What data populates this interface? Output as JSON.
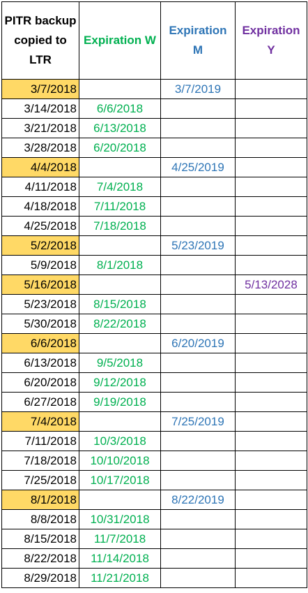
{
  "headers": {
    "backup": "PITR backup copied to LTR",
    "w": "Expiration W",
    "m": "Expiration M",
    "y": "Expiration Y"
  },
  "colors": {
    "w": "#00b050",
    "m": "#2e75b6",
    "y": "#7030a0",
    "highlight": "#ffd966"
  },
  "rows": [
    {
      "backup": "3/7/2018",
      "w": "",
      "m": "3/7/2019",
      "y": "",
      "highlight": true
    },
    {
      "backup": "3/14/2018",
      "w": "6/6/2018",
      "m": "",
      "y": "",
      "highlight": false
    },
    {
      "backup": "3/21/2018",
      "w": "6/13/2018",
      "m": "",
      "y": "",
      "highlight": false
    },
    {
      "backup": "3/28/2018",
      "w": "6/20/2018",
      "m": "",
      "y": "",
      "highlight": false
    },
    {
      "backup": "4/4/2018",
      "w": "",
      "m": "4/25/2019",
      "y": "",
      "highlight": true
    },
    {
      "backup": "4/11/2018",
      "w": "7/4/2018",
      "m": "",
      "y": "",
      "highlight": false
    },
    {
      "backup": "4/18/2018",
      "w": "7/11/2018",
      "m": "",
      "y": "",
      "highlight": false
    },
    {
      "backup": "4/25/2018",
      "w": "7/18/2018",
      "m": "",
      "y": "",
      "highlight": false
    },
    {
      "backup": "5/2/2018",
      "w": "",
      "m": "5/23/2019",
      "y": "",
      "highlight": true
    },
    {
      "backup": "5/9/2018",
      "w": "8/1/2018",
      "m": "",
      "y": "",
      "highlight": false
    },
    {
      "backup": "5/16/2018",
      "w": "",
      "m": "",
      "y": "5/13/2028",
      "highlight": true
    },
    {
      "backup": "5/23/2018",
      "w": "8/15/2018",
      "m": "",
      "y": "",
      "highlight": false
    },
    {
      "backup": "5/30/2018",
      "w": "8/22/2018",
      "m": "",
      "y": "",
      "highlight": false
    },
    {
      "backup": "6/6/2018",
      "w": "",
      "m": "6/20/2019",
      "y": "",
      "highlight": true
    },
    {
      "backup": "6/13/2018",
      "w": "9/5/2018",
      "m": "",
      "y": "",
      "highlight": false
    },
    {
      "backup": "6/20/2018",
      "w": "9/12/2018",
      "m": "",
      "y": "",
      "highlight": false
    },
    {
      "backup": "6/27/2018",
      "w": "9/19/2018",
      "m": "",
      "y": "",
      "highlight": false
    },
    {
      "backup": "7/4/2018",
      "w": "",
      "m": "7/25/2019",
      "y": "",
      "highlight": true
    },
    {
      "backup": "7/11/2018",
      "w": "10/3/2018",
      "m": "",
      "y": "",
      "highlight": false
    },
    {
      "backup": "7/18/2018",
      "w": "10/10/2018",
      "m": "",
      "y": "",
      "highlight": false
    },
    {
      "backup": "7/25/2018",
      "w": "10/17/2018",
      "m": "",
      "y": "",
      "highlight": false
    },
    {
      "backup": "8/1/2018",
      "w": "",
      "m": "8/22/2019",
      "y": "",
      "highlight": true
    },
    {
      "backup": "8/8/2018",
      "w": "10/31/2018",
      "m": "",
      "y": "",
      "highlight": false
    },
    {
      "backup": "8/15/2018",
      "w": "11/7/2018",
      "m": "",
      "y": "",
      "highlight": false
    },
    {
      "backup": "8/22/2018",
      "w": "11/14/2018",
      "m": "",
      "y": "",
      "highlight": false
    },
    {
      "backup": "8/29/2018",
      "w": "11/21/2018",
      "m": "",
      "y": "",
      "highlight": false
    }
  ]
}
